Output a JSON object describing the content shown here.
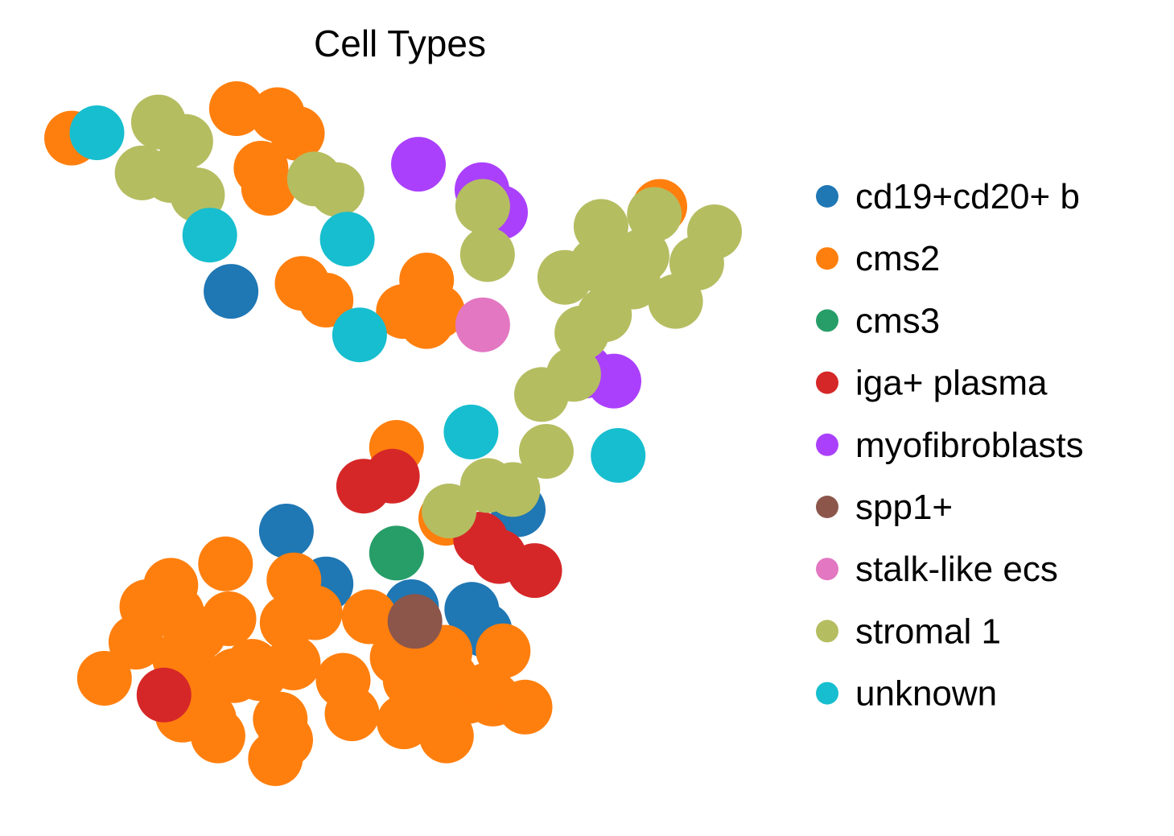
{
  "chart_data": {
    "type": "scatter",
    "title": "Cell Types",
    "xlabel": "",
    "ylabel": "",
    "grid": false,
    "axes_visible": false,
    "legend_position": "right",
    "xlim": [
      0,
      100
    ],
    "ylim": [
      0,
      100
    ],
    "series": [
      {
        "name": "cd19+cd20+ b",
        "color": "#1f77b4",
        "points": [
          [
            25.3,
            72.7
          ],
          [
            67.3,
            40.1
          ],
          [
            33.4,
            36.9
          ],
          [
            39.2,
            29.0
          ],
          [
            51.7,
            25.6
          ],
          [
            60.5,
            25.2
          ],
          [
            62.4,
            22.1
          ]
        ]
      },
      {
        "name": "cms2",
        "color": "#ff7f0e",
        "points": [
          [
            2.0,
            95.6
          ],
          [
            26.1,
            100.0
          ],
          [
            32.1,
            99.1
          ],
          [
            35.0,
            96.3
          ],
          [
            29.7,
            91.1
          ],
          [
            30.8,
            88.1
          ],
          [
            35.7,
            73.9
          ],
          [
            39.2,
            71.4
          ],
          [
            53.9,
            74.4
          ],
          [
            50.5,
            69.7
          ],
          [
            55.5,
            69.7
          ],
          [
            53.9,
            68.2
          ],
          [
            88.0,
            85.4
          ],
          [
            49.5,
            49.4
          ],
          [
            56.7,
            38.8
          ],
          [
            24.5,
            32.0
          ],
          [
            16.5,
            28.8
          ],
          [
            34.5,
            29.6
          ],
          [
            13.0,
            25.6
          ],
          [
            17.4,
            24.7
          ],
          [
            25.0,
            23.8
          ],
          [
            37.6,
            24.7
          ],
          [
            33.5,
            23.2
          ],
          [
            45.5,
            24.1
          ],
          [
            11.4,
            20.3
          ],
          [
            20.6,
            21.6
          ],
          [
            17.8,
            17.8
          ],
          [
            28.4,
            16.7
          ],
          [
            34.4,
            17.2
          ],
          [
            49.6,
            18.0
          ],
          [
            56.6,
            18.8
          ],
          [
            65.1,
            19.0
          ],
          [
            6.8,
            14.9
          ],
          [
            19.9,
            15.6
          ],
          [
            25.8,
            15.3
          ],
          [
            29.5,
            15.6
          ],
          [
            41.7,
            14.6
          ],
          [
            51.5,
            14.6
          ],
          [
            57.4,
            14.9
          ],
          [
            60.0,
            12.2
          ],
          [
            62.6,
            13.1
          ],
          [
            18.2,
            9.4
          ],
          [
            22.1,
            8.8
          ],
          [
            32.5,
            8.8
          ],
          [
            43.0,
            9.6
          ],
          [
            50.6,
            8.4
          ],
          [
            56.2,
            9.0
          ],
          [
            63.6,
            11.8
          ],
          [
            68.3,
            10.6
          ],
          [
            23.4,
            6.3
          ],
          [
            33.3,
            5.7
          ],
          [
            56.8,
            6.3
          ],
          [
            31.8,
            2.9
          ]
        ]
      },
      {
        "name": "cms3",
        "color": "#279e68",
        "points": [
          [
            49.5,
            33.6
          ]
        ]
      },
      {
        "name": "iga+ plasma",
        "color": "#d62728",
        "points": [
          [
            48.9,
            45.1
          ],
          [
            44.7,
            43.6
          ],
          [
            61.8,
            35.7
          ],
          [
            64.5,
            33.1
          ],
          [
            69.7,
            31.0
          ],
          [
            15.5,
            12.4
          ]
        ]
      },
      {
        "name": "myofibroblasts",
        "color": "#aa40fc",
        "points": [
          [
            52.7,
            91.7
          ],
          [
            64.7,
            84.5
          ],
          [
            62.0,
            87.9
          ],
          [
            77.1,
            60.8
          ],
          [
            81.3,
            59.3
          ]
        ]
      },
      {
        "name": "spp1+",
        "color": "#8c564b",
        "points": [
          [
            52.2,
            23.4
          ]
        ]
      },
      {
        "name": "stalk-like ecs",
        "color": "#e377c2",
        "points": [
          [
            62.1,
            67.7
          ]
        ]
      },
      {
        "name": "stromal 1",
        "color": "#b5bd61",
        "points": [
          [
            14.7,
            98.0
          ],
          [
            18.7,
            95.1
          ],
          [
            12.3,
            90.4
          ],
          [
            16.5,
            90.0
          ],
          [
            20.4,
            87.1
          ],
          [
            37.5,
            89.5
          ],
          [
            40.8,
            87.9
          ],
          [
            62.1,
            85.4
          ],
          [
            62.8,
            78.2
          ],
          [
            79.4,
            82.4
          ],
          [
            87.2,
            84.2
          ],
          [
            96.0,
            81.6
          ],
          [
            74.1,
            74.8
          ],
          [
            78.8,
            76.7
          ],
          [
            82.6,
            75.1
          ],
          [
            85.4,
            78.0
          ],
          [
            93.4,
            76.9
          ],
          [
            84.1,
            74.1
          ],
          [
            90.3,
            71.2
          ],
          [
            79.9,
            69.2
          ],
          [
            76.6,
            66.5
          ],
          [
            75.4,
            60.3
          ],
          [
            70.7,
            57.3
          ],
          [
            71.4,
            48.8
          ],
          [
            62.8,
            43.7
          ],
          [
            66.5,
            43.1
          ],
          [
            57.2,
            39.9
          ]
        ]
      },
      {
        "name": "unknown",
        "color": "#17becf",
        "points": [
          [
            5.7,
            96.4
          ],
          [
            22.2,
            81.1
          ],
          [
            42.3,
            80.5
          ],
          [
            44.1,
            66.2
          ],
          [
            60.4,
            51.7
          ],
          [
            81.9,
            48.2
          ]
        ]
      }
    ]
  }
}
